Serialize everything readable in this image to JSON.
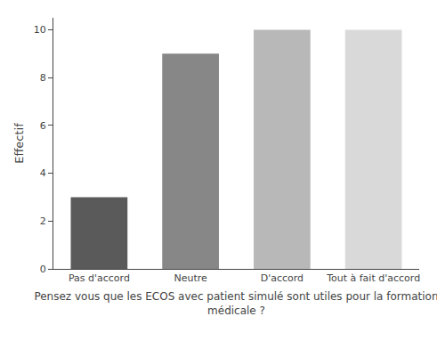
{
  "chart_data": {
    "type": "bar",
    "categories": [
      "Pas d'accord",
      "Neutre",
      "D'accord",
      "Tout à fait d'accord"
    ],
    "values": [
      3,
      9,
      10,
      10
    ],
    "colors": [
      "#5a5a5a",
      "#878787",
      "#b8b8b8",
      "#d9d9d9"
    ],
    "ylabel": "Effectif",
    "xlabel": "Pensez vous que les ECOS avec patient simulé sont utiles pour la formation\nmédicale ?",
    "ylim": [
      0,
      10.5
    ],
    "yticks": [
      0,
      2,
      4,
      6,
      8,
      10
    ],
    "grid": false
  }
}
